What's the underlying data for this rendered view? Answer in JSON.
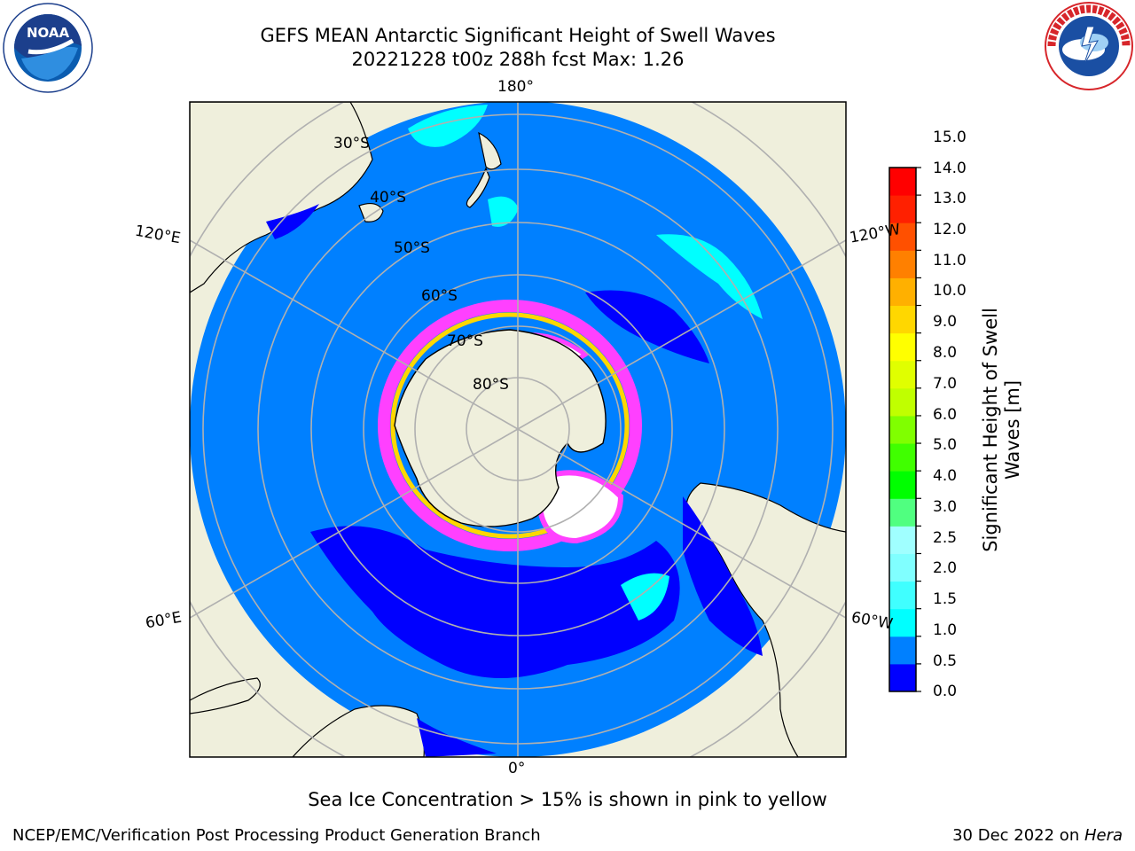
{
  "header": {
    "title_line1": "GEFS MEAN Antarctic Significant Height of Swell Waves",
    "title_line2": "20221228 t00z 288h fcst   Max: 1.26"
  },
  "logos": {
    "left": {
      "name": "NOAA",
      "ring_text": "NATIONAL OCEANIC AND ATMOSPHERIC ADMINISTRATION · U.S. DEPARTMENT OF COMMERCE",
      "icon": "noaa-logo-icon"
    },
    "right": {
      "name": "NATIONAL WEATHER SERVICE",
      "icon": "nws-logo-icon"
    }
  },
  "map": {
    "projection": "south-polar-stereographic",
    "longitude_labels": {
      "top": "180°",
      "bottom": "0°",
      "left_upper": "120°E",
      "left_lower": "60°E",
      "right_upper": "120°W",
      "right_lower": "60°W"
    },
    "latitude_labels": [
      "30°S",
      "40°S",
      "50°S",
      "60°S",
      "70°S",
      "80°S"
    ],
    "colors": {
      "ocean_base": "#0080ff",
      "land": "#efefdc",
      "coast": "#000000",
      "grid": "#b0b0b0"
    }
  },
  "colorbar": {
    "title_line1": "Significant Height of Swell",
    "title_line2": "Waves [m]",
    "ticks": [
      "0.0",
      "0.5",
      "1.0",
      "1.5",
      "2.0",
      "2.5",
      "3.0",
      "4.0",
      "5.0",
      "6.0",
      "7.0",
      "8.0",
      "9.0",
      "10.0",
      "11.0",
      "12.0",
      "13.0",
      "14.0",
      "15.0"
    ],
    "colors": [
      "#0000ff",
      "#0080ff",
      "#00ffff",
      "#40ffff",
      "#80ffff",
      "#a0ffff",
      "#50ff80",
      "#00ff00",
      "#40ff00",
      "#80ff00",
      "#c0ff00",
      "#e0ff00",
      "#ffff00",
      "#ffd700",
      "#ffb000",
      "#ff8000",
      "#ff5000",
      "#ff2000",
      "#ff0000"
    ]
  },
  "note": "Sea Ice Concentration > 15% is shown in pink to yellow",
  "footer": {
    "left": "NCEP/EMC/Verification Post Processing Product Generation Branch",
    "right_prefix": "30 Dec 2022 on ",
    "right_host": "Hera"
  }
}
